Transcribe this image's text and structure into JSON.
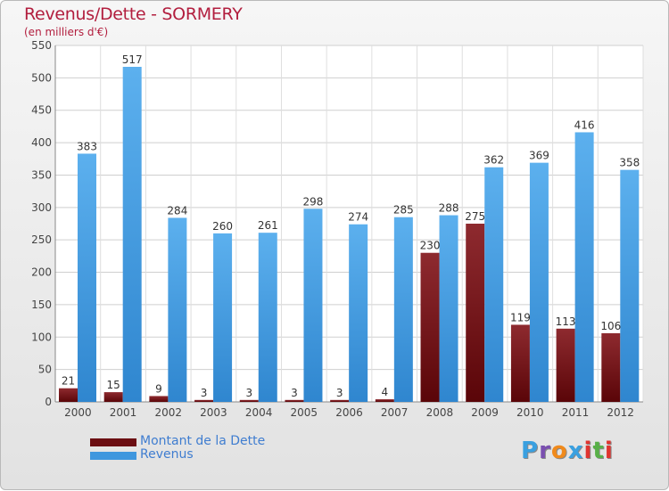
{
  "chart_data": {
    "type": "bar",
    "title": "Revenus/Dette - SORMERY",
    "subtitle": "(en milliers d'€)",
    "xlabel": "",
    "ylabel": "",
    "ylim": [
      0,
      550
    ],
    "y_ticks": [
      0,
      50,
      100,
      150,
      200,
      250,
      300,
      350,
      400,
      450,
      500,
      550
    ],
    "categories": [
      "2000",
      "2001",
      "2002",
      "2003",
      "2004",
      "2005",
      "2006",
      "2007",
      "2008",
      "2009",
      "2010",
      "2011",
      "2012"
    ],
    "series": [
      {
        "name": "Montant de la Dette",
        "color": "#8a1a1f",
        "values": [
          21,
          15,
          9,
          3,
          3,
          3,
          3,
          4,
          230,
          275,
          119,
          113,
          106
        ]
      },
      {
        "name": "Revenus",
        "color": "#3f97de",
        "values": [
          383,
          517,
          284,
          260,
          261,
          298,
          274,
          285,
          288,
          362,
          369,
          416,
          358
        ]
      }
    ],
    "grid": true,
    "legend_position": "bottom-left"
  },
  "logo": {
    "text": "Proxiti",
    "letters": [
      "P",
      "r",
      "o",
      "x",
      "i",
      "t",
      "i"
    ],
    "colors": [
      "#3aa0e0",
      "#7a4fb0",
      "#f08a1c",
      "#3aa0e0",
      "#e0342f",
      "#58b047",
      "#e0342f"
    ]
  }
}
